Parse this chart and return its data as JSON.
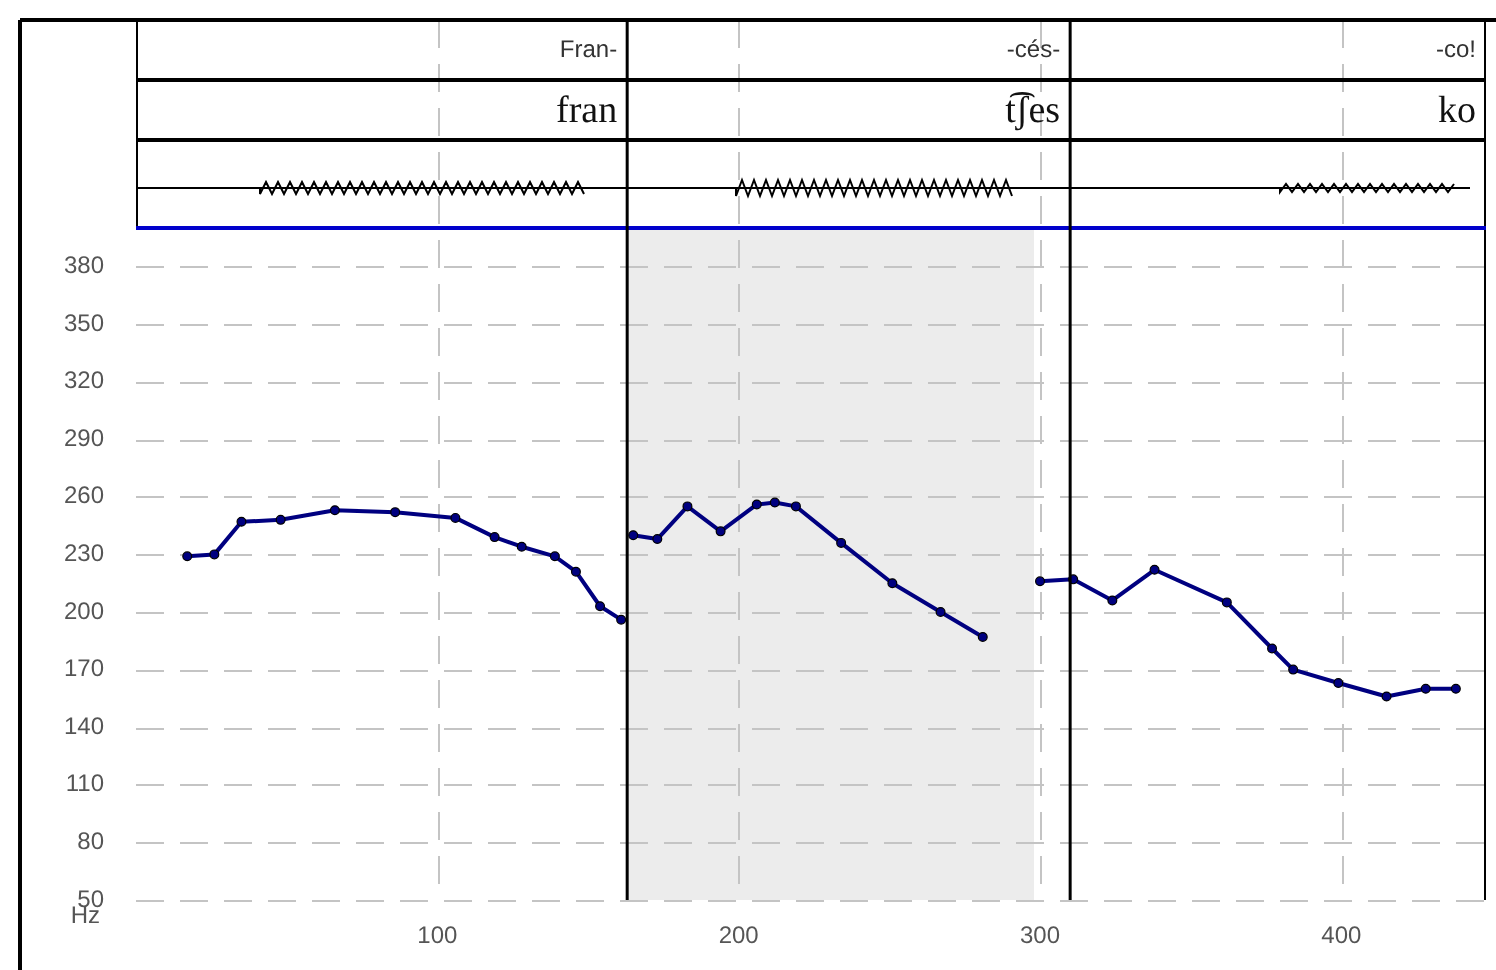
{
  "chart_data": {
    "type": "line",
    "ylabel": "Hz",
    "annotations": [
      "Fran-",
      "-cés-",
      "-co!",
      "fran",
      "t͡ʃes",
      "ko"
    ],
    "x": [
      17,
      26,
      35,
      48,
      66,
      86,
      106,
      119,
      128,
      139,
      146,
      154,
      161,
      163,
      165,
      173,
      183,
      194,
      206,
      212,
      219,
      234,
      251,
      267,
      281,
      290,
      300,
      311,
      324,
      338,
      362,
      377,
      384,
      399,
      415,
      428,
      438
    ],
    "series": [
      {
        "color": "#000080",
        "values": [
          229,
          230,
          247,
          248,
          253,
          252,
          249,
          239,
          234,
          229,
          221,
          203,
          196,
          null,
          240,
          238,
          255,
          242,
          256,
          257,
          255,
          236,
          215,
          200,
          187,
          null,
          216,
          217,
          206,
          222,
          205,
          181,
          170,
          163,
          156,
          160,
          160
        ]
      }
    ],
    "xlim": [
      0,
      448
    ],
    "xticks": [
      100,
      200,
      300,
      400
    ],
    "ylim": [
      50,
      400
    ],
    "yticks": [
      50,
      80,
      110,
      140,
      170,
      200,
      230,
      260,
      290,
      320,
      350,
      380
    ],
    "ref_lines": [
      {
        "axis": "x",
        "value": 163,
        "color": "#000000"
      },
      {
        "axis": "x",
        "value": 310,
        "color": "#000000"
      }
    ],
    "bands": [
      {
        "axis": "x",
        "from": 163,
        "to": 298,
        "color": "#ececec"
      }
    ],
    "grid": true,
    "marker": "circle",
    "line_style": "solid",
    "legend": false
  }
}
